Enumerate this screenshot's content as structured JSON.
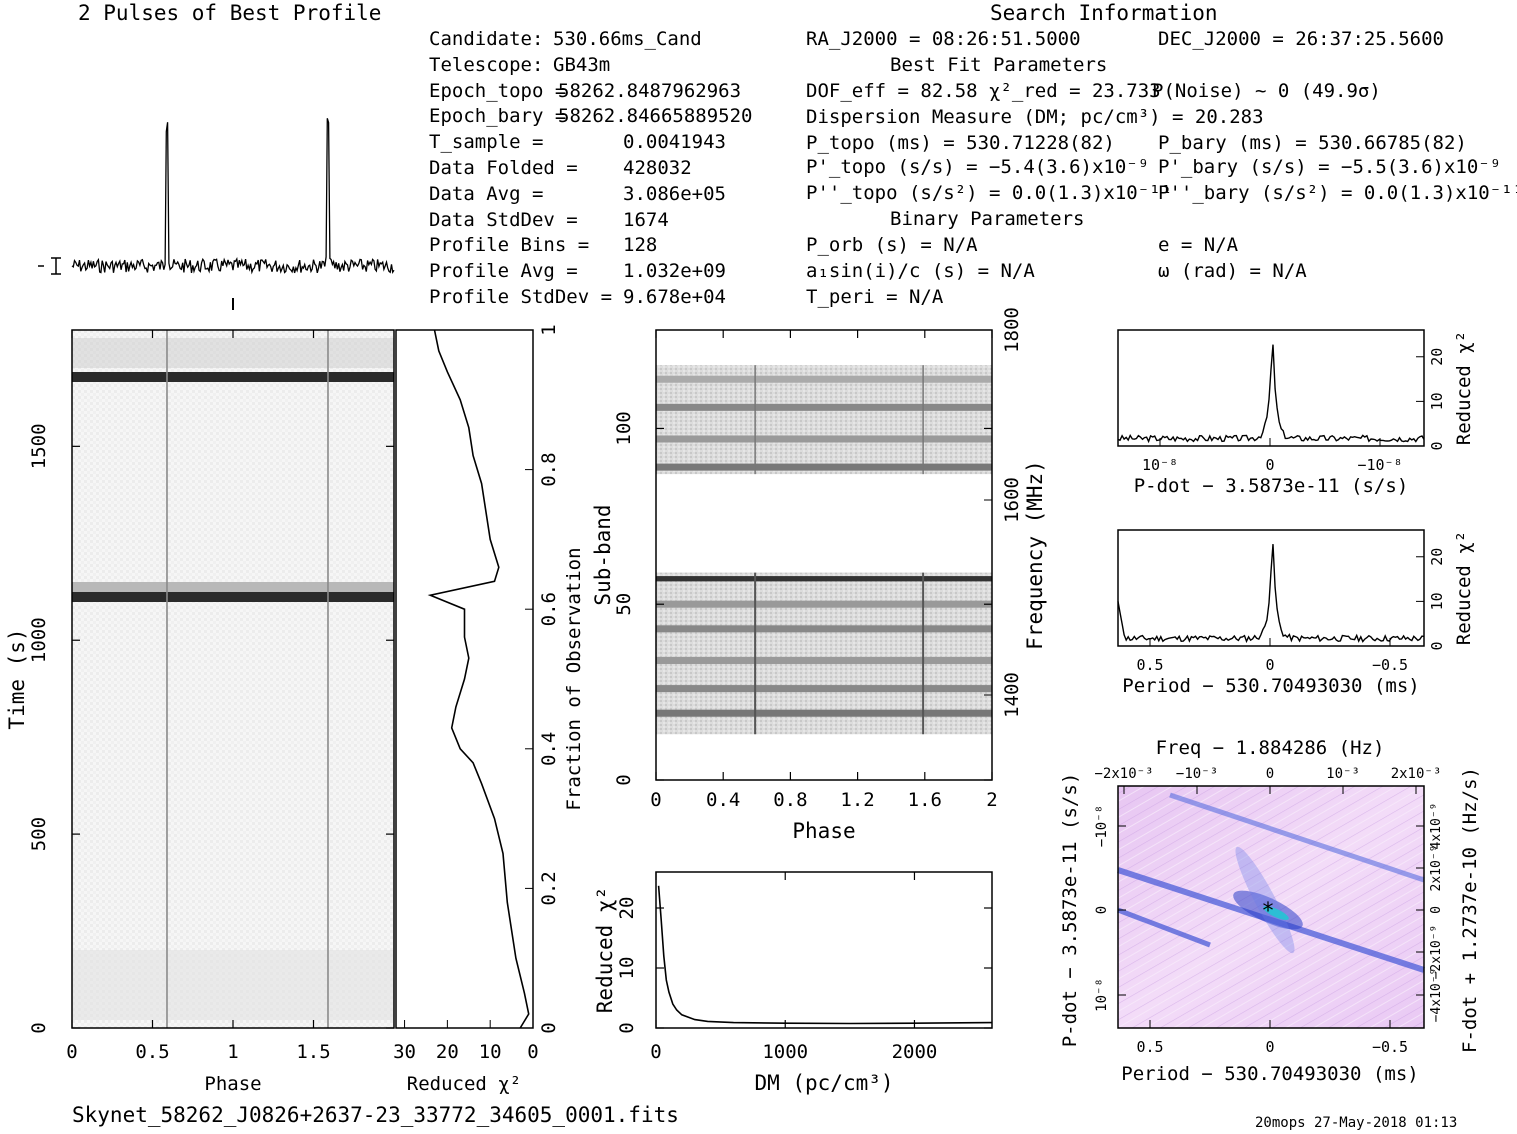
{
  "titles": {
    "profile": "2 Pulses of Best Profile",
    "search": "Search Information",
    "bestfit": "Best Fit Parameters",
    "binary": "Binary Parameters"
  },
  "candidate_info": [
    {
      "label": "Candidate:",
      "value": "530.66ms_Cand"
    },
    {
      "label": "Telescope:",
      "value": "GB43m"
    },
    {
      "label": "Epoch_topo =",
      "value": "58262.8487962963"
    },
    {
      "label": "Epoch_bary =",
      "value": "58262.84665889520"
    },
    {
      "label": "T_sample =",
      "value": "0.0041943"
    },
    {
      "label": "Data Folded =",
      "value": "428032"
    },
    {
      "label": "Data Avg =",
      "value": "3.086e+05"
    },
    {
      "label": "Data StdDev =",
      "value": "1674"
    },
    {
      "label": "Profile Bins =",
      "value": "128"
    },
    {
      "label": "Profile Avg =",
      "value": "1.032e+09"
    },
    {
      "label": "Profile StdDev =",
      "value": "9.678e+04"
    }
  ],
  "search": {
    "ra": "RA_J2000 = 08:26:51.5000",
    "dec": "DEC_J2000 = 26:37:25.5600",
    "dof": "DOF_eff = 82.58  χ²_red = 23.733",
    "pnoise": "P(Noise) ~ 0   (49.9σ)",
    "dm": "Dispersion Measure (DM; pc/cm³) = 20.283",
    "ptopo": "P_topo (ms) =  530.71228(82)",
    "pbary": "P_bary (ms) =  530.66785(82)",
    "pdtopo": "P'_topo (s/s) = −5.4(3.6)x10⁻⁹",
    "pdbary": "P'_bary (s/s) = −5.5(3.6)x10⁻⁹",
    "pddtopo": "P''_topo (s/s²) = 0.0(1.3)x10⁻¹¹",
    "pddbary": "P''_bary (s/s²) = 0.0(1.3)x10⁻¹¹",
    "porb": "P_orb (s) = N/A",
    "ecc": "e = N/A",
    "a1": "a₁sin(i)/c (s) = N/A",
    "omega": "ω (rad) = N/A",
    "tperi": "T_peri = N/A"
  },
  "footer": {
    "filename": "Skynet_58262_J0826+2637-23_33772_34605_0001.fits",
    "stamp": "20mops 27-May-2018 01:13"
  },
  "chart_data": [
    {
      "type": "line",
      "name": "profile",
      "title": "2 Pulses of Best Profile",
      "xlim": [
        0,
        2
      ],
      "peaks_phase": [
        0.59,
        1.59
      ],
      "note_values": "two narrow pulses at phase ~0.59 and ~1.59 over noisy baseline"
    },
    {
      "type": "heatmap",
      "name": "time-phase",
      "xlabel": "Phase",
      "ylabel": "Time (s)",
      "xlim": [
        0,
        2
      ],
      "ylim": [
        0,
        1800
      ],
      "xticks": [
        "0",
        "0.5",
        "1",
        "1.5"
      ],
      "yticks": [
        "0",
        "500",
        "1000",
        "1500"
      ],
      "dark_rows_time": [
        1080,
        1660
      ]
    },
    {
      "type": "line",
      "name": "time-chi2",
      "xlabel": "Reduced χ²",
      "ylabel": "Fraction of Observation",
      "xticks": [
        "30",
        "20",
        "10",
        "0"
      ],
      "yticks": [
        "0",
        "0.2",
        "0.4",
        "0.6",
        "0.8",
        "1"
      ],
      "chi2_reversed": true,
      "points": [
        [
          0,
          3
        ],
        [
          0.02,
          1
        ],
        [
          0.05,
          2
        ],
        [
          0.1,
          4
        ],
        [
          0.18,
          6
        ],
        [
          0.25,
          7
        ],
        [
          0.3,
          9
        ],
        [
          0.35,
          12
        ],
        [
          0.38,
          14
        ],
        [
          0.4,
          17
        ],
        [
          0.43,
          19
        ],
        [
          0.46,
          18
        ],
        [
          0.5,
          16
        ],
        [
          0.53,
          15
        ],
        [
          0.56,
          16
        ],
        [
          0.6,
          16
        ],
        [
          0.62,
          24
        ],
        [
          0.64,
          9
        ],
        [
          0.66,
          8
        ],
        [
          0.7,
          10
        ],
        [
          0.74,
          11
        ],
        [
          0.78,
          12
        ],
        [
          0.82,
          14
        ],
        [
          0.86,
          15
        ],
        [
          0.9,
          17
        ],
        [
          0.94,
          20
        ],
        [
          0.97,
          22
        ],
        [
          1,
          23
        ]
      ]
    },
    {
      "type": "heatmap",
      "name": "subband-phase",
      "xlabel": "Phase",
      "ylabel": "Sub-band",
      "y2label": "Frequency (MHz)",
      "xlim": [
        0,
        2
      ],
      "ylim": [
        0,
        128
      ],
      "xticks": [
        "0",
        "0.4",
        "0.8",
        "1.2",
        "1.6",
        "2"
      ],
      "yticks": [
        "0",
        "50",
        "100"
      ],
      "y2ticks": [
        "1400",
        "1600",
        "1800"
      ]
    },
    {
      "type": "line",
      "name": "dm-chi2",
      "xlabel": "DM (pc/cm³)",
      "ylabel": "Reduced χ²",
      "xlim": [
        0,
        2600
      ],
      "ylim": [
        0,
        26
      ],
      "xticks": [
        "0",
        "1000",
        "2000"
      ],
      "yticks": [
        "0",
        "10",
        "20"
      ],
      "points": [
        [
          20,
          23.7
        ],
        [
          40,
          18
        ],
        [
          60,
          12
        ],
        [
          80,
          8
        ],
        [
          100,
          6
        ],
        [
          130,
          4
        ],
        [
          160,
          3
        ],
        [
          200,
          2.2
        ],
        [
          300,
          1.4
        ],
        [
          400,
          1.1
        ],
        [
          600,
          0.9
        ],
        [
          1000,
          0.8
        ],
        [
          1500,
          0.75
        ],
        [
          2000,
          0.8
        ],
        [
          2600,
          0.9
        ]
      ]
    },
    {
      "type": "line",
      "name": "pdot-chi2",
      "xlabel": "P-dot − 3.5873e-11 (s/s)",
      "ylabel": "Reduced χ²",
      "xticks": [
        "10⁻⁸",
        "0",
        "−10⁻⁸"
      ],
      "yticks": [
        "0",
        "10",
        "20"
      ],
      "peak": 23.7
    },
    {
      "type": "line",
      "name": "period-chi2",
      "xlabel": "Period − 530.70493030 (ms)",
      "ylabel": "Reduced χ²",
      "xticks": [
        "0.5",
        "0",
        "−0.5"
      ],
      "yticks": [
        "0",
        "10",
        "20"
      ],
      "peak": 23.7
    },
    {
      "type": "heatmap",
      "name": "period-pdot",
      "title": "Freq − 1.884286 (Hz)",
      "xlabel": "Period − 530.70493030 (ms)",
      "ylabel": "P-dot − 3.5873e-11 (s/s)",
      "y2label": "F-dot + 1.2737e-10 (Hz/s)",
      "xticks": [
        "0.5",
        "0",
        "−0.5"
      ],
      "x2ticks": [
        "−2x10⁻³",
        "−10⁻³",
        "0",
        "10⁻³",
        "2x10⁻³"
      ],
      "yticks": [
        "−10⁻⁸",
        "0",
        "10⁻⁸"
      ],
      "y2ticks": [
        "4x10⁻⁹",
        "2x10⁻⁹",
        "0",
        "−2x10⁻⁹",
        "−4x10⁻⁹"
      ]
    }
  ]
}
